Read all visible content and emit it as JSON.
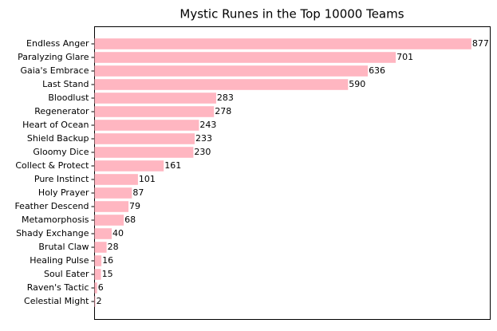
{
  "chart_data": {
    "type": "barh",
    "title": "Mystic Runes in the Top 10000 Teams",
    "categories": [
      "Endless Anger",
      "Paralyzing Glare",
      "Gaia's Embrace",
      "Last Stand",
      "Bloodlust",
      "Regenerator",
      "Heart of Ocean",
      "Shield Backup",
      "Gloomy Dice",
      "Collect & Protect",
      "Pure Instinct",
      "Holy Prayer",
      "Feather Descend",
      "Metamorphosis",
      "Shady Exchange",
      "Brutal Claw",
      "Healing Pulse",
      "Soul Eater",
      "Raven's Tactic",
      "Celestial Might"
    ],
    "values": [
      877,
      701,
      636,
      590,
      283,
      278,
      243,
      233,
      230,
      161,
      101,
      87,
      79,
      68,
      40,
      28,
      16,
      15,
      6,
      2
    ],
    "color": "#ffb6c1",
    "xlim": [
      0,
      920.85
    ]
  }
}
